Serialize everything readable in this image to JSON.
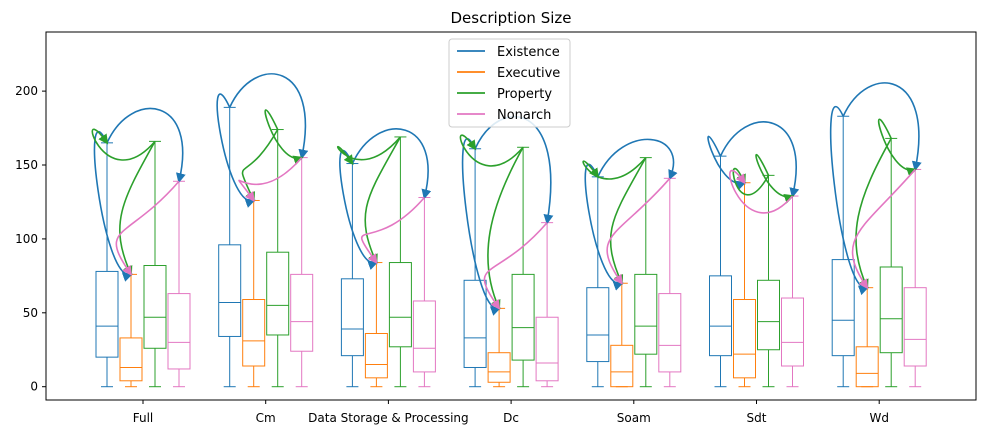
{
  "chart_data": {
    "type": "box",
    "title": "Description Size",
    "xlabel": "",
    "ylabel": "",
    "ylim": [
      -9,
      240
    ],
    "yticks": [
      0,
      50,
      100,
      150,
      200
    ],
    "grid": false,
    "legend_placement": "top-center",
    "categories": [
      "Full",
      "Cm",
      "Data Storage & Processing",
      "Dc",
      "Soam",
      "Sdt",
      "Wd"
    ],
    "series": [
      {
        "name": "Existence",
        "color": "#1f77b4",
        "boxes": [
          {
            "min": 0,
            "q1": 20,
            "median": 41,
            "q3": 78,
            "max": 165
          },
          {
            "min": 0,
            "q1": 34,
            "median": 57,
            "q3": 96,
            "max": 189
          },
          {
            "min": 0,
            "q1": 21,
            "median": 39,
            "q3": 73,
            "max": 151
          },
          {
            "min": 0,
            "q1": 13,
            "median": 33,
            "q3": 72,
            "max": 161
          },
          {
            "min": 0,
            "q1": 17,
            "median": 35,
            "q3": 67,
            "max": 142
          },
          {
            "min": 0,
            "q1": 21,
            "median": 41,
            "q3": 75,
            "max": 156
          },
          {
            "min": 0,
            "q1": 21,
            "median": 45,
            "q3": 86,
            "max": 183
          }
        ]
      },
      {
        "name": "Executive",
        "color": "#ff7f0e",
        "boxes": [
          {
            "min": 0,
            "q1": 4,
            "median": 13,
            "q3": 33,
            "max": 76
          },
          {
            "min": 0,
            "q1": 14,
            "median": 31,
            "q3": 59,
            "max": 126
          },
          {
            "min": 0,
            "q1": 6,
            "median": 15,
            "q3": 36,
            "max": 84
          },
          {
            "min": 0,
            "q1": 3,
            "median": 10,
            "q3": 23,
            "max": 53
          },
          {
            "min": 0,
            "q1": 0,
            "median": 10,
            "q3": 28,
            "max": 70
          },
          {
            "min": 0,
            "q1": 6,
            "median": 22,
            "q3": 59,
            "max": 138
          },
          {
            "min": 0,
            "q1": 0,
            "median": 9,
            "q3": 27,
            "max": 67
          }
        ]
      },
      {
        "name": "Property",
        "color": "#2ca02c",
        "boxes": [
          {
            "min": 0,
            "q1": 26,
            "median": 47,
            "q3": 82,
            "max": 166
          },
          {
            "min": 0,
            "q1": 35,
            "median": 55,
            "q3": 91,
            "max": 174
          },
          {
            "min": 0,
            "q1": 27,
            "median": 47,
            "q3": 84,
            "max": 169
          },
          {
            "min": 0,
            "q1": 18,
            "median": 40,
            "q3": 76,
            "max": 162
          },
          {
            "min": 0,
            "q1": 22,
            "median": 41,
            "q3": 76,
            "max": 155
          },
          {
            "min": 0,
            "q1": 25,
            "median": 44,
            "q3": 72,
            "max": 143
          },
          {
            "min": 0,
            "q1": 23,
            "median": 46,
            "q3": 81,
            "max": 168
          }
        ]
      },
      {
        "name": "Nonarch",
        "color": "#e377c2",
        "boxes": [
          {
            "min": 0,
            "q1": 12,
            "median": 30,
            "q3": 63,
            "max": 139
          },
          {
            "min": 0,
            "q1": 24,
            "median": 44,
            "q3": 76,
            "max": 155
          },
          {
            "min": 0,
            "q1": 10,
            "median": 26,
            "q3": 58,
            "max": 128
          },
          {
            "min": 0,
            "q1": 4,
            "median": 16,
            "q3": 47,
            "max": 111
          },
          {
            "min": 0,
            "q1": 10,
            "median": 28,
            "q3": 63,
            "max": 141
          },
          {
            "min": 0,
            "q1": 14,
            "median": 30,
            "q3": 60,
            "max": 129
          },
          {
            "min": 0,
            "q1": 14,
            "median": 32,
            "q3": 67,
            "max": 147
          }
        ]
      }
    ],
    "arrows": [
      {
        "category": 0,
        "from": 0,
        "to": 1,
        "color": "#1f77b4"
      },
      {
        "category": 0,
        "from": 0,
        "to": 3,
        "color": "#1f77b4"
      },
      {
        "category": 0,
        "from": 2,
        "to": 0,
        "color": "#2ca02c"
      },
      {
        "category": 0,
        "from": 2,
        "to": 1,
        "color": "#2ca02c"
      },
      {
        "category": 0,
        "from": 3,
        "to": 1,
        "color": "#e377c2"
      },
      {
        "category": 1,
        "from": 0,
        "to": 1,
        "color": "#1f77b4"
      },
      {
        "category": 1,
        "from": 0,
        "to": 3,
        "color": "#1f77b4"
      },
      {
        "category": 1,
        "from": 2,
        "to": 1,
        "color": "#2ca02c"
      },
      {
        "category": 1,
        "from": 2,
        "to": 3,
        "color": "#2ca02c"
      },
      {
        "category": 1,
        "from": 3,
        "to": 1,
        "color": "#e377c2"
      },
      {
        "category": 2,
        "from": 0,
        "to": 1,
        "color": "#1f77b4"
      },
      {
        "category": 2,
        "from": 0,
        "to": 3,
        "color": "#1f77b4"
      },
      {
        "category": 2,
        "from": 2,
        "to": 0,
        "color": "#2ca02c"
      },
      {
        "category": 2,
        "from": 2,
        "to": 1,
        "color": "#2ca02c"
      },
      {
        "category": 2,
        "from": 3,
        "to": 1,
        "color": "#e377c2"
      },
      {
        "category": 3,
        "from": 0,
        "to": 1,
        "color": "#1f77b4"
      },
      {
        "category": 3,
        "from": 0,
        "to": 3,
        "color": "#1f77b4"
      },
      {
        "category": 3,
        "from": 2,
        "to": 0,
        "color": "#2ca02c"
      },
      {
        "category": 3,
        "from": 2,
        "to": 1,
        "color": "#2ca02c"
      },
      {
        "category": 3,
        "from": 3,
        "to": 1,
        "color": "#e377c2"
      },
      {
        "category": 4,
        "from": 0,
        "to": 1,
        "color": "#1f77b4"
      },
      {
        "category": 4,
        "from": 0,
        "to": 3,
        "color": "#1f77b4"
      },
      {
        "category": 4,
        "from": 2,
        "to": 0,
        "color": "#2ca02c"
      },
      {
        "category": 4,
        "from": 2,
        "to": 1,
        "color": "#2ca02c"
      },
      {
        "category": 4,
        "from": 3,
        "to": 1,
        "color": "#e377c2"
      },
      {
        "category": 5,
        "from": 0,
        "to": 1,
        "color": "#1f77b4"
      },
      {
        "category": 5,
        "from": 0,
        "to": 3,
        "color": "#1f77b4"
      },
      {
        "category": 5,
        "from": 2,
        "to": 1,
        "color": "#2ca02c"
      },
      {
        "category": 5,
        "from": 2,
        "to": 3,
        "color": "#2ca02c"
      },
      {
        "category": 5,
        "from": 3,
        "to": 1,
        "color": "#e377c2"
      },
      {
        "category": 6,
        "from": 0,
        "to": 1,
        "color": "#1f77b4"
      },
      {
        "category": 6,
        "from": 0,
        "to": 3,
        "color": "#1f77b4"
      },
      {
        "category": 6,
        "from": 2,
        "to": 1,
        "color": "#2ca02c"
      },
      {
        "category": 6,
        "from": 2,
        "to": 3,
        "color": "#2ca02c"
      },
      {
        "category": 6,
        "from": 3,
        "to": 1,
        "color": "#e377c2"
      }
    ]
  }
}
